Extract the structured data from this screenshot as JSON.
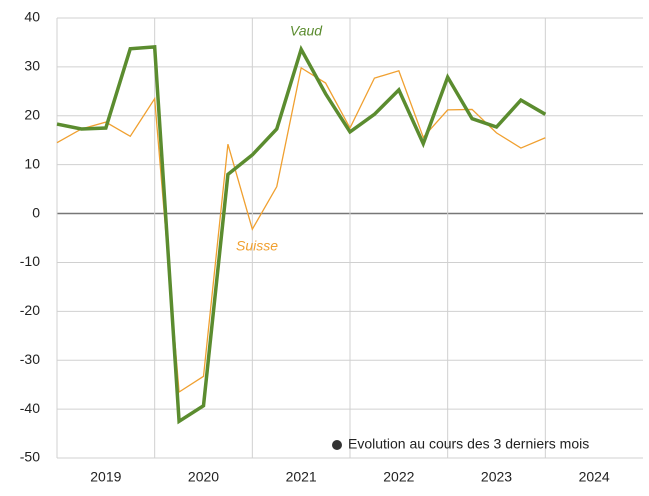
{
  "chart_data": {
    "type": "line",
    "x": [
      2019,
      2019.25,
      2019.5,
      2019.75,
      2020,
      2020.25,
      2020.5,
      2020.75,
      2021,
      2021.25,
      2021.5,
      2021.75,
      2022,
      2022.25,
      2022.5,
      2022.75,
      2023,
      2023.25,
      2023.5,
      2023.75,
      2024
    ],
    "series": [
      {
        "name": "Suisse",
        "color": "#f0a030",
        "width": 1.3,
        "values": [
          14.5,
          17.3,
          18.7,
          15.8,
          23.5,
          -36.5,
          -33.3,
          14.2,
          -3.2,
          5.5,
          29.8,
          26.7,
          17.5,
          27.7,
          29.2,
          15.6,
          21.2,
          21.3,
          16.5,
          13.4,
          15.5
        ]
      },
      {
        "name": "Vaud",
        "color": "#5b8c2f",
        "width": 3.5,
        "values": [
          18.3,
          17.3,
          17.5,
          33.7,
          34.1,
          -42.5,
          -39.3,
          8,
          12,
          17.3,
          33.6,
          24.5,
          16.7,
          20.3,
          25.3,
          14.3,
          27.9,
          19.4,
          17.7,
          23.2,
          20.3
        ]
      }
    ],
    "xlim": [
      2019,
      2025
    ],
    "xticks": [
      {
        "value": 2019.5,
        "label": "2019"
      },
      {
        "value": 2020.5,
        "label": "2020"
      },
      {
        "value": 2021.5,
        "label": "2021"
      },
      {
        "value": 2022.5,
        "label": "2022"
      },
      {
        "value": 2023.5,
        "label": "2023"
      },
      {
        "value": 2024.5,
        "label": "2024"
      }
    ],
    "xgrid": [
      2020,
      2021,
      2022,
      2023,
      2024
    ],
    "ylim": [
      -50,
      40
    ],
    "yticks": [
      -50,
      -40,
      -30,
      -20,
      -10,
      0,
      10,
      20,
      30,
      40
    ],
    "grid": true,
    "note": "Evolution au cours des 3 derniers mois"
  }
}
